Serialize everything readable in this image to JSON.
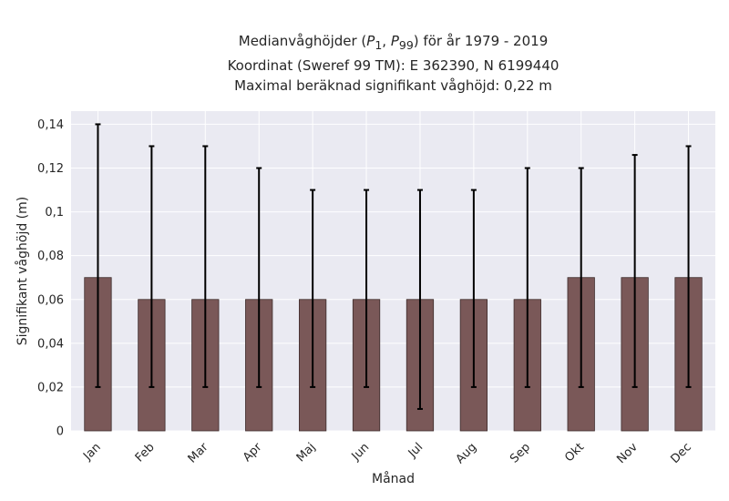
{
  "chart_data": {
    "type": "bar",
    "title_parts": {
      "prefix": "Medianvåghöjder (",
      "p_low_sub": "1",
      "p_high_sub": "99",
      "suffix": ") för år 1979 - 2019"
    },
    "subtitle_lines": [
      "Koordinat (Sweref 99 TM): E 362390, N 6199440",
      "Maximal beräknad signifikant våghöjd: 0,22 m"
    ],
    "xlabel": "Månad",
    "ylabel": "Signifikant våghöjd (m)",
    "categories": [
      "Jan",
      "Feb",
      "Mar",
      "Apr",
      "Maj",
      "Jun",
      "Jul",
      "Aug",
      "Sep",
      "Okt",
      "Nov",
      "Dec"
    ],
    "values": [
      0.07,
      0.06,
      0.06,
      0.06,
      0.06,
      0.06,
      0.06,
      0.06,
      0.06,
      0.07,
      0.07,
      0.07
    ],
    "err_low": [
      0.02,
      0.02,
      0.02,
      0.02,
      0.02,
      0.02,
      0.01,
      0.02,
      0.02,
      0.02,
      0.02,
      0.02
    ],
    "err_high": [
      0.14,
      0.13,
      0.13,
      0.12,
      0.11,
      0.11,
      0.11,
      0.11,
      0.12,
      0.12,
      0.126,
      0.13
    ],
    "ylim": [
      0,
      0.146
    ],
    "yticks": [
      0,
      0.02,
      0.04,
      0.06,
      0.08,
      0.1,
      0.12,
      0.14
    ],
    "ytick_labels": [
      "0",
      "0,02",
      "0,04",
      "0,06",
      "0,08",
      "0,1",
      "0,12",
      "0,14"
    ],
    "grid": true,
    "colors": {
      "bar": "#7a5858",
      "bar_edge": "#3d2b2b",
      "errorbar": "#000000",
      "background": "#eaeaf2",
      "grid": "#ffffff"
    }
  }
}
